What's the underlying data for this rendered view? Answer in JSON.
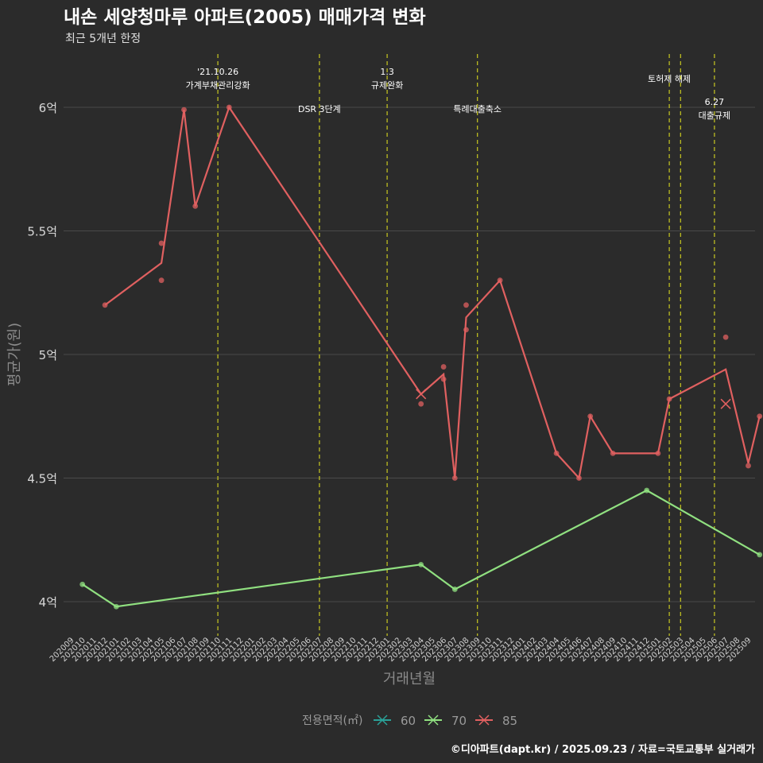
{
  "chart_data": {
    "type": "line",
    "title": "내손 세양청마루 아파트(2005) 매매가격 변화",
    "subtitle": "최근 5개년 한정",
    "xlabel": "거래년월",
    "ylabel": "평균가(원)",
    "footer": "©디아파트(dapt.kr) / 2025.09.23 / 자료=국토교통부 실거래가",
    "legend": {
      "title": "전용면적(㎡)",
      "position": "bottom",
      "labels": [
        "60",
        "70",
        "85"
      ]
    },
    "ylim": [
      3.88,
      6.22
    ],
    "y_ticks": [
      4,
      4.5,
      5,
      5.5,
      6
    ],
    "y_tick_labels": [
      "4억",
      "4.5억",
      "5억",
      "5.5억",
      "6억"
    ],
    "x_categories": [
      "202009",
      "202010",
      "202011",
      "202012",
      "202101",
      "202102",
      "202103",
      "202104",
      "202105",
      "202106",
      "202107",
      "202108",
      "202109",
      "202110",
      "202111",
      "202112",
      "202201",
      "202202",
      "202203",
      "202204",
      "202205",
      "202206",
      "202207",
      "202208",
      "202209",
      "202210",
      "202211",
      "202212",
      "202301",
      "202302",
      "202303",
      "202304",
      "202305",
      "202306",
      "202307",
      "202308",
      "202309",
      "202310",
      "202311",
      "202312",
      "202401",
      "202402",
      "202403",
      "202404",
      "202405",
      "202406",
      "202407",
      "202408",
      "202409",
      "202410",
      "202411",
      "202412",
      "202501",
      "202502",
      "202503",
      "202504",
      "202505",
      "202506",
      "202507",
      "202508",
      "202509"
    ],
    "series": [
      {
        "name": "60",
        "color": "#2aa198",
        "line": [],
        "points": []
      },
      {
        "name": "70",
        "color": "#90e080",
        "line": [
          [
            "202010",
            4.07
          ],
          [
            "202101",
            3.98
          ],
          [
            "202304",
            4.15
          ],
          [
            "202307",
            4.05
          ],
          [
            "202412",
            4.45
          ],
          [
            "202510",
            4.19
          ]
        ],
        "points": [
          [
            "202010",
            4.07
          ],
          [
            "202101",
            3.98
          ],
          [
            "202304",
            4.15
          ],
          [
            "202307",
            4.05
          ],
          [
            "202412",
            4.45
          ],
          [
            "202510",
            4.19
          ]
        ]
      },
      {
        "name": "85",
        "color": "#e06060",
        "line": [
          [
            "202012",
            5.2
          ],
          [
            "202105",
            5.37
          ],
          [
            "202107",
            5.99
          ],
          [
            "202108",
            5.6
          ],
          [
            "202111",
            6.0
          ],
          [
            "202304",
            4.84
          ],
          [
            "202306",
            4.92
          ],
          [
            "202307",
            4.5
          ],
          [
            "202308",
            5.15
          ],
          [
            "202311",
            5.3
          ],
          [
            "202404",
            4.6
          ],
          [
            "202406",
            4.5
          ],
          [
            "202407",
            4.75
          ],
          [
            "202409",
            4.6
          ],
          [
            "202501",
            4.6
          ],
          [
            "202502",
            4.82
          ],
          [
            "202507",
            4.94
          ],
          [
            "202509",
            4.56
          ],
          [
            "202510",
            4.75
          ]
        ],
        "points": [
          [
            "202012",
            5.2
          ],
          [
            "202105",
            5.45
          ],
          [
            "202105",
            5.3
          ],
          [
            "202107",
            5.99
          ],
          [
            "202108",
            5.6
          ],
          [
            "202111",
            6.0
          ],
          [
            "202304",
            4.8
          ],
          [
            "202306",
            4.95
          ],
          [
            "202306",
            4.9
          ],
          [
            "202307",
            4.5
          ],
          [
            "202308",
            5.2
          ],
          [
            "202308",
            5.1
          ],
          [
            "202311",
            5.3
          ],
          [
            "202404",
            4.6
          ],
          [
            "202406",
            4.5
          ],
          [
            "202407",
            4.75
          ],
          [
            "202409",
            4.6
          ],
          [
            "202501",
            4.6
          ],
          [
            "202502",
            4.82
          ],
          [
            "202507",
            5.07
          ],
          [
            "202509",
            4.55
          ],
          [
            "202510",
            4.75
          ]
        ],
        "crosses": [
          [
            "202304",
            4.84
          ],
          [
            "202507",
            4.8
          ]
        ]
      }
    ],
    "events": [
      {
        "x": "202110",
        "label1": "'21.10.26",
        "label2": "가계부채관리강화",
        "level": "top"
      },
      {
        "x": "202207",
        "label1": "",
        "label2": "DSR 3단계",
        "level": "low"
      },
      {
        "x": "202301",
        "label1": "1.3",
        "label2": "규제완화",
        "level": "top"
      },
      {
        "x": "202309",
        "label1": "",
        "label2": "특례대출축소",
        "level": "low"
      },
      {
        "x": "202502",
        "label1": "",
        "label2": "토허제 해제",
        "level": "mid"
      },
      {
        "x": "202503",
        "label1": "",
        "label2": "",
        "level": "none"
      },
      {
        "x": "202506",
        "label1": "6.27",
        "label2": "대출규제",
        "level": "low2"
      }
    ]
  }
}
